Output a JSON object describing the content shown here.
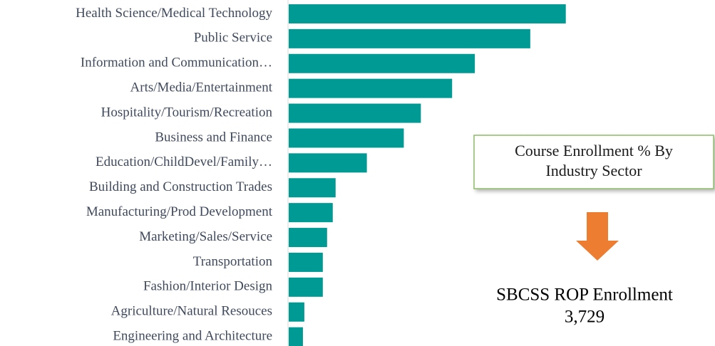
{
  "chart_data": {
    "type": "hbar",
    "categories": [
      "Health Science/Medical Technology",
      "Public Service",
      "Information and Communication…",
      "Arts/Media/Entertainment",
      "Hospitality/Tourism/Recreation",
      "Business and Finance",
      "Education/ChildDevel/Family…",
      "Building and Construction Trades",
      "Manufacturing/Prod Development",
      "Marketing/Sales/Service",
      "Transportation",
      "Fashion/Interior Design",
      "Agriculture/Natural Resouces",
      "Engineering and Architecture"
    ],
    "values": [
      19.5,
      17.0,
      13.1,
      11.5,
      9.3,
      8.1,
      5.5,
      3.3,
      3.1,
      2.7,
      2.4,
      2.4,
      1.1,
      1.0
    ],
    "color": "#009a94",
    "xlim": [
      0,
      30
    ],
    "callout": [
      "Course Enrollment % By",
      "Industry Sector"
    ],
    "callout_arrow_color": "#ed7d31",
    "total_label": "SBCSS ROP Enrollment",
    "total_value": "3,729"
  }
}
